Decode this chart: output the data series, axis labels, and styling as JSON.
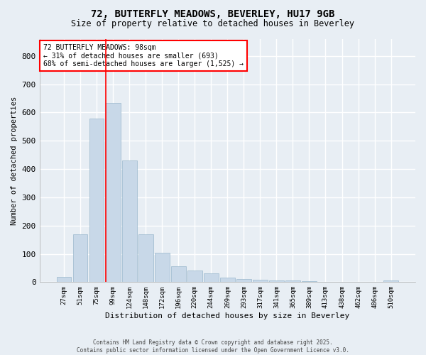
{
  "title_line1": "72, BUTTERFLY MEADOWS, BEVERLEY, HU17 9GB",
  "title_line2": "Size of property relative to detached houses in Beverley",
  "xlabel": "Distribution of detached houses by size in Beverley",
  "ylabel": "Number of detached properties",
  "bar_color": "#c8d8e8",
  "bar_edge_color": "#9ab8cc",
  "categories": [
    "27sqm",
    "51sqm",
    "75sqm",
    "99sqm",
    "124sqm",
    "148sqm",
    "172sqm",
    "196sqm",
    "220sqm",
    "244sqm",
    "269sqm",
    "293sqm",
    "317sqm",
    "341sqm",
    "365sqm",
    "389sqm",
    "413sqm",
    "438sqm",
    "462sqm",
    "486sqm",
    "510sqm"
  ],
  "values": [
    18,
    168,
    578,
    635,
    430,
    170,
    105,
    57,
    42,
    30,
    15,
    10,
    8,
    5,
    5,
    4,
    0,
    0,
    0,
    0,
    6
  ],
  "ylim": [
    0,
    860
  ],
  "yticks": [
    0,
    100,
    200,
    300,
    400,
    500,
    600,
    700,
    800
  ],
  "red_line_x": 3.0,
  "annotation_text": "72 BUTTERFLY MEADOWS: 98sqm\n← 31% of detached houses are smaller (693)\n68% of semi-detached houses are larger (1,525) →",
  "footer_line1": "Contains HM Land Registry data © Crown copyright and database right 2025.",
  "footer_line2": "Contains public sector information licensed under the Open Government Licence v3.0.",
  "background_color": "#e8eef4",
  "plot_background_color": "#e8eef4",
  "grid_color": "#ffffff"
}
